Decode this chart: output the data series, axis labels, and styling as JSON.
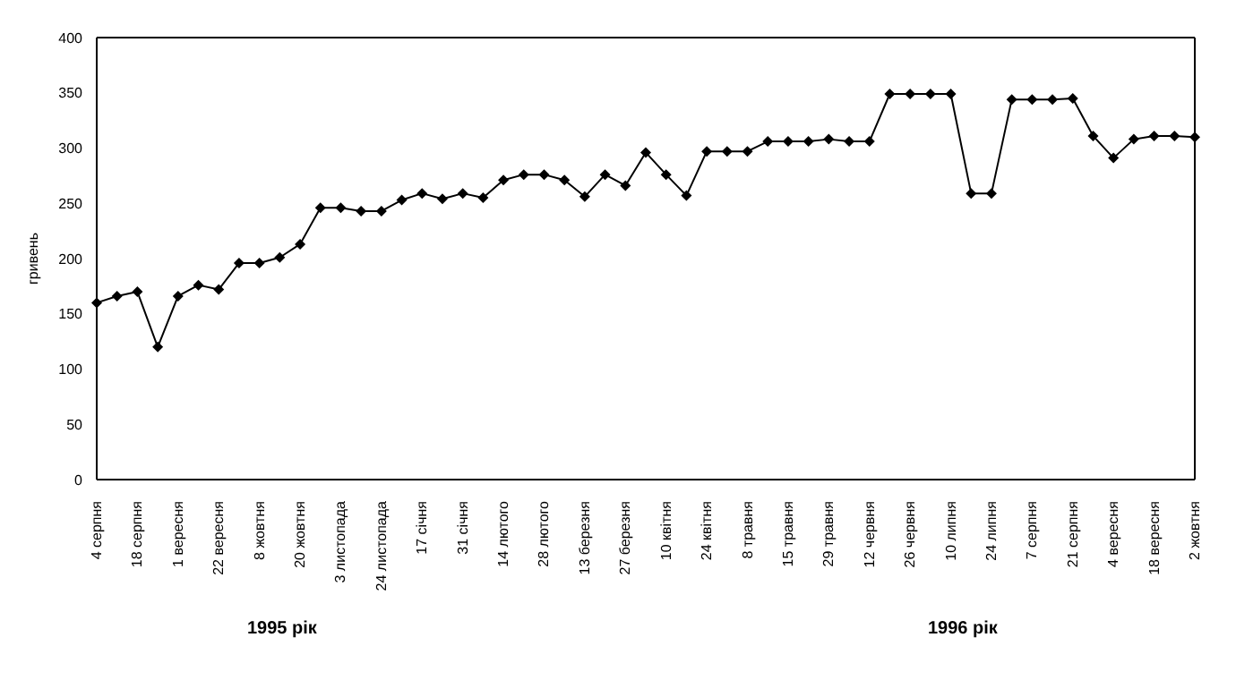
{
  "chart_data": {
    "type": "line",
    "ylabel": "гривень",
    "categories": [
      "4 серпня",
      null,
      "18 серпня",
      null,
      "1 вересня",
      null,
      "22 вересня",
      null,
      "8 жовтня",
      null,
      "20 жовтня",
      null,
      "3 листопада",
      null,
      "24 листопада",
      null,
      "17 січня",
      null,
      "31 січня",
      null,
      "14 лютого",
      null,
      "28 лютого",
      null,
      "13 березня",
      null,
      "27 березня",
      null,
      "10 квітня",
      null,
      "24 квітня",
      null,
      "8 травня",
      null,
      "15 травня",
      null,
      "29 травня",
      null,
      "12 червня",
      null,
      "26 червня",
      null,
      "10 липня",
      null,
      "24 липня",
      null,
      "7 серпня",
      null,
      "21 серпня",
      null,
      "4 вересня",
      null,
      "18 вересня",
      null,
      "2 жовтня"
    ],
    "series": [
      {
        "color": "#000000",
        "values": [
          160,
          166,
          170,
          120,
          166,
          176,
          172,
          196,
          196,
          201,
          213,
          246,
          246,
          243,
          243,
          253,
          259,
          254,
          259,
          255,
          271,
          276,
          276,
          271,
          256,
          276,
          266,
          296,
          276,
          257,
          297,
          297,
          297,
          306,
          306,
          306,
          308,
          306,
          306,
          349,
          349,
          349,
          349,
          259,
          259,
          344,
          344,
          344,
          345,
          311,
          291,
          308,
          311,
          311,
          310
        ]
      }
    ],
    "ylim": [
      0,
      400
    ],
    "yticks": [
      0,
      50,
      100,
      150,
      200,
      250,
      300,
      350,
      400
    ],
    "marker": "diamond",
    "line_style": "solid",
    "annotations": [
      "1995 рік",
      "1996 рік"
    ]
  }
}
